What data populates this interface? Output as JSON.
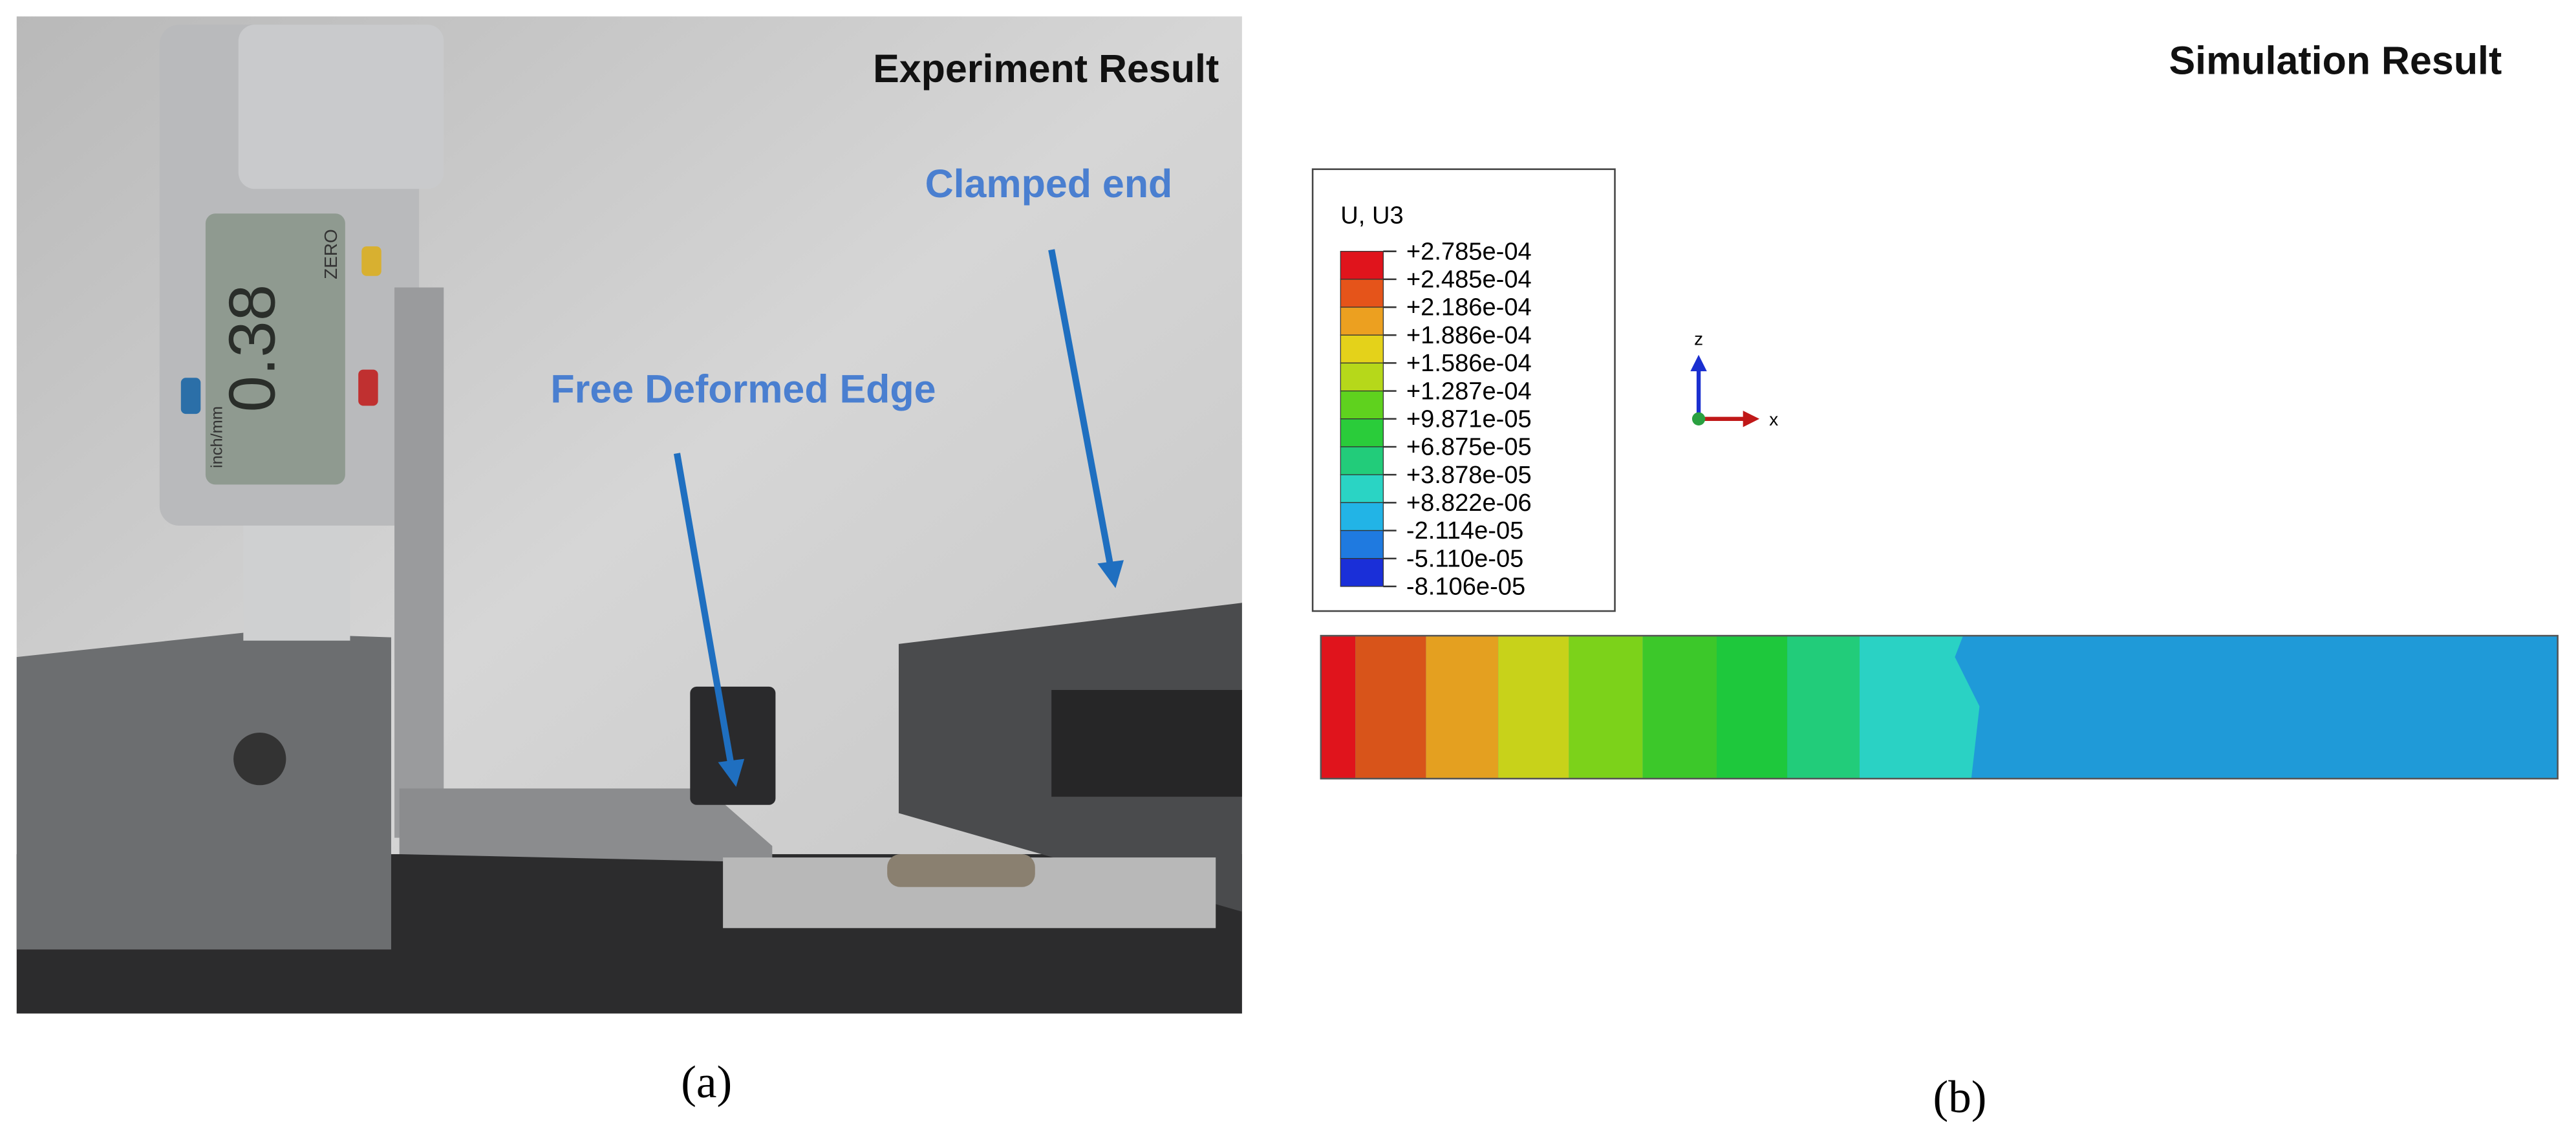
{
  "panel_a": {
    "title": "Experiment Result",
    "clamped_label": "Clamped end",
    "edge_label": "Free Deformed Edge",
    "display_reading": "0.38",
    "zero_label": "ZERO",
    "unit_label": "inch/mm",
    "caption": "(a)"
  },
  "panel_b": {
    "title": "Simulation Result",
    "legend": {
      "title": "U, U3",
      "labels": [
        "+2.785e-04",
        "+2.485e-04",
        "+2.186e-04",
        "+1.886e-04",
        "+1.586e-04",
        "+1.287e-04",
        "+9.871e-05",
        "+6.875e-05",
        "+3.878e-05",
        "+8.822e-06",
        "-2.114e-05",
        "-5.110e-05",
        "-8.106e-05"
      ],
      "colors": [
        "#e0141c",
        "#e5541a",
        "#eca020",
        "#e4d21a",
        "#b6d81a",
        "#5fd21e",
        "#2acc3a",
        "#22cc7a",
        "#2ad4c4",
        "#22b4e6",
        "#1f7ae0",
        "#1a2fd8"
      ]
    },
    "axis_z": "z",
    "axis_x": "x",
    "caption": "(b)"
  }
}
